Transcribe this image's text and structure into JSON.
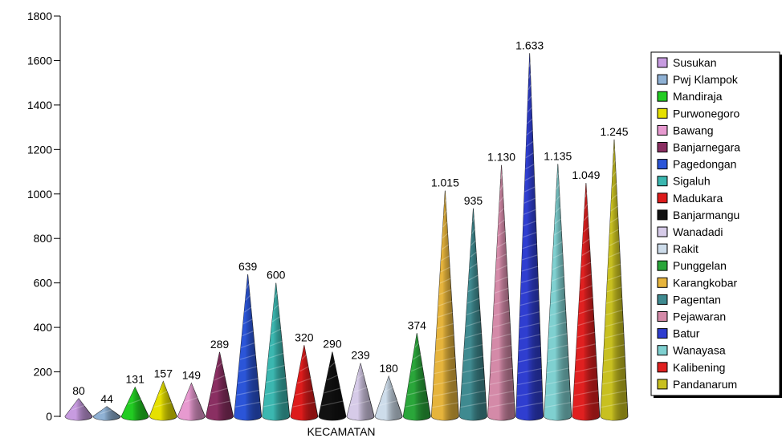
{
  "chart_data": {
    "type": "bar",
    "xlabel": "KECAMATAN",
    "ylabel": "",
    "ylim": [
      0,
      1800
    ],
    "yticks": [
      0,
      200,
      400,
      600,
      800,
      1000,
      1200,
      1400,
      1600,
      1800
    ],
    "legend_position": "right",
    "series": [
      {
        "name": "Susukan",
        "value": 80,
        "label": "80",
        "color": "#c79be0"
      },
      {
        "name": "Pwj Klampok",
        "value": 44,
        "label": "44",
        "color": "#8fb1d4"
      },
      {
        "name": "Mandiraja",
        "value": 131,
        "label": "131",
        "color": "#22cc22"
      },
      {
        "name": "Purwonegoro",
        "value": 157,
        "label": "157",
        "color": "#e6e000"
      },
      {
        "name": "Bawang",
        "value": 149,
        "label": "149",
        "color": "#e79ad0"
      },
      {
        "name": "Banjarnegara",
        "value": 289,
        "label": "289",
        "color": "#8a2f62"
      },
      {
        "name": "Pagedongan",
        "value": 639,
        "label": "639",
        "color": "#2b55d8"
      },
      {
        "name": "Sigaluh",
        "value": 600,
        "label": "600",
        "color": "#3bb7b0"
      },
      {
        "name": "Madukara",
        "value": 320,
        "label": "320",
        "color": "#dd1b1b"
      },
      {
        "name": "Banjarmangu",
        "value": 290,
        "label": "290",
        "color": "#111111"
      },
      {
        "name": "Wanadadi",
        "value": 239,
        "label": "239",
        "color": "#d6cbe8"
      },
      {
        "name": "Rakit",
        "value": 180,
        "label": "180",
        "color": "#cddcea"
      },
      {
        "name": "Punggelan",
        "value": 374,
        "label": "374",
        "color": "#2aa63a"
      },
      {
        "name": "Karangkobar",
        "value": 1015,
        "label": "1.015",
        "color": "#e6b43c"
      },
      {
        "name": "Pagentan",
        "value": 935,
        "label": "935",
        "color": "#3f8a90"
      },
      {
        "name": "Pejawaran",
        "value": 1130,
        "label": "1.130",
        "color": "#d48aa8"
      },
      {
        "name": "Batur",
        "value": 1633,
        "label": "1.633",
        "color": "#2f3ed0"
      },
      {
        "name": "Wanayasa",
        "value": 1135,
        "label": "1.135",
        "color": "#7fd0d0"
      },
      {
        "name": "Kalibening",
        "value": 1049,
        "label": "1.049",
        "color": "#e02020"
      },
      {
        "name": "Pandanarum",
        "value": 1245,
        "label": "1.245",
        "color": "#c8c020"
      }
    ]
  }
}
